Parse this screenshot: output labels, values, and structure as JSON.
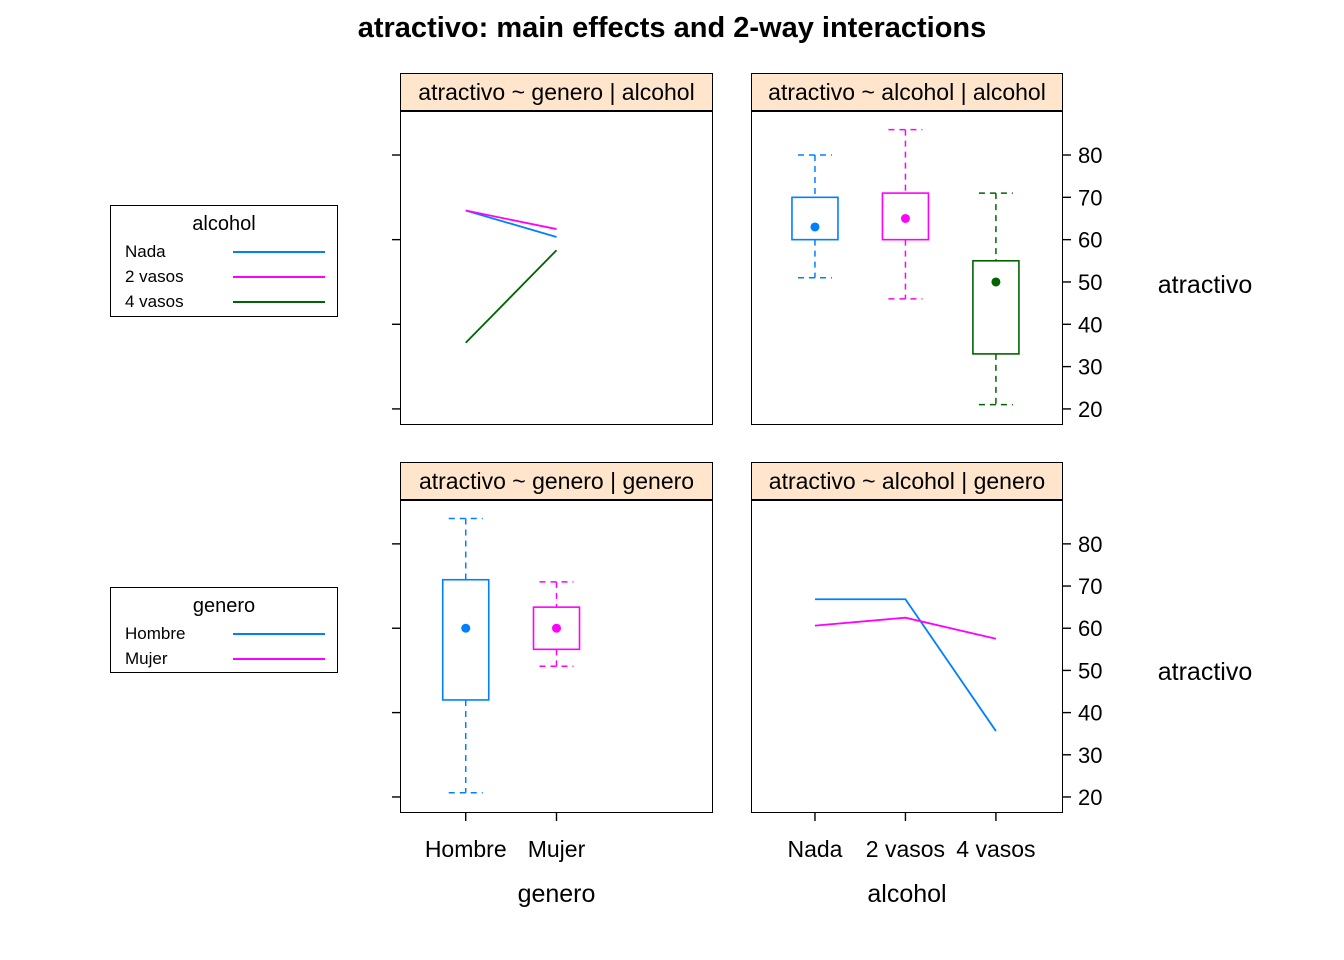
{
  "title": "atractivo: main effects and 2-way interactions",
  "colors": {
    "blue": "#0080FF",
    "magenta": "#FF00FF",
    "dark_green": "#006400",
    "strip_bg": "#FFE5CC",
    "panel_border": "#000000"
  },
  "legends": [
    {
      "title": "alcohol",
      "items": [
        {
          "label": "Nada",
          "color": "#0080FF"
        },
        {
          "label": "2 vasos",
          "color": "#FF00FF"
        },
        {
          "label": "4 vasos",
          "color": "#006400"
        }
      ]
    },
    {
      "title": "genero",
      "items": [
        {
          "label": "Hombre",
          "color": "#0080FF"
        },
        {
          "label": "Mujer",
          "color": "#FF00FF"
        }
      ]
    }
  ],
  "axes": {
    "y_axis_label": "atractivo",
    "ylim": [
      16.2,
      90.4
    ],
    "y_ticks_labeled": [
      20,
      30,
      40,
      50,
      60,
      70,
      80
    ],
    "y_ticks_unlabeled": [
      20,
      40,
      60,
      80
    ]
  },
  "chart_data": [
    {
      "type": "line",
      "panel": "top-left",
      "strip_title": "atractivo ~ genero | alcohol",
      "xlabel": "genero",
      "ylabel": "atractivo",
      "x_categories": [
        "Hombre",
        "Mujer"
      ],
      "series": [
        {
          "name": "Nada",
          "color": "#0080FF",
          "values": [
            66.875,
            60.625
          ]
        },
        {
          "name": "2 vasos",
          "color": "#FF00FF",
          "values": [
            66.875,
            62.5
          ]
        },
        {
          "name": "4 vasos",
          "color": "#006400",
          "values": [
            35.625,
            57.5
          ]
        }
      ]
    },
    {
      "type": "boxplot",
      "panel": "top-right",
      "strip_title": "atractivo ~ alcohol | alcohol",
      "xlabel": "alcohol",
      "ylabel": "atractivo",
      "x_categories": [
        "Nada",
        "2 vasos",
        "4 vasos"
      ],
      "boxes": [
        {
          "name": "Nada",
          "color": "#0080FF",
          "whisker_low": 51,
          "q1": 60,
          "median": 63,
          "q3": 70,
          "whisker_high": 80
        },
        {
          "name": "2 vasos",
          "color": "#FF00FF",
          "whisker_low": 46,
          "q1": 60,
          "median": 65,
          "q3": 71,
          "whisker_high": 86
        },
        {
          "name": "4 vasos",
          "color": "#006400",
          "whisker_low": 21,
          "q1": 33,
          "median": 50,
          "q3": 55,
          "whisker_high": 71
        }
      ]
    },
    {
      "type": "boxplot",
      "panel": "bottom-left",
      "strip_title": "atractivo ~ genero | genero",
      "xlabel": "genero",
      "ylabel": "atractivo",
      "x_categories": [
        "Hombre",
        "Mujer"
      ],
      "boxes": [
        {
          "name": "Hombre",
          "color": "#0080FF",
          "whisker_low": 21,
          "q1": 43,
          "median": 60,
          "q3": 71.5,
          "whisker_high": 86
        },
        {
          "name": "Mujer",
          "color": "#FF00FF",
          "whisker_low": 51,
          "q1": 55,
          "median": 60,
          "q3": 65,
          "whisker_high": 71
        }
      ]
    },
    {
      "type": "line",
      "panel": "bottom-right",
      "strip_title": "atractivo ~ alcohol | genero",
      "xlabel": "alcohol",
      "ylabel": "atractivo",
      "x_categories": [
        "Nada",
        "2 vasos",
        "4 vasos"
      ],
      "series": [
        {
          "name": "Hombre",
          "color": "#0080FF",
          "values": [
            66.875,
            66.875,
            35.625
          ]
        },
        {
          "name": "Mujer",
          "color": "#FF00FF",
          "values": [
            60.625,
            62.5,
            57.5
          ]
        }
      ]
    }
  ]
}
